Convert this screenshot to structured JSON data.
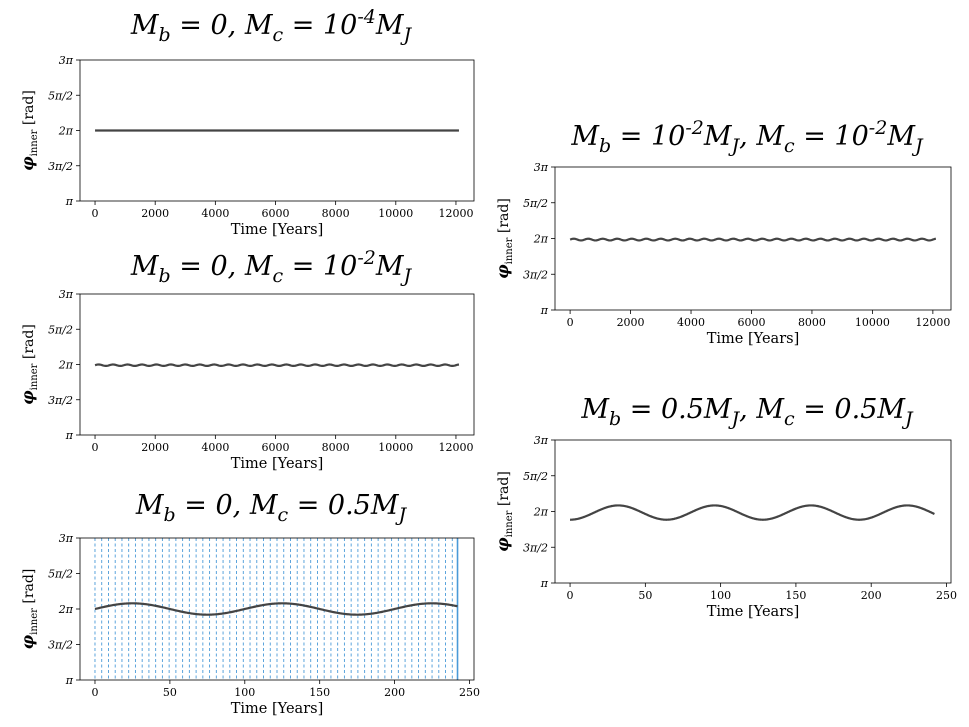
{
  "chart_data": [
    {
      "type": "line",
      "title": "M_b = 0, M_c = 10^{-4}M_J",
      "xlabel": "Time [Years]",
      "ylabel": "φ_inner [rad]",
      "xticks": [
        "0",
        "2000",
        "4000",
        "6000",
        "8000",
        "10000",
        "12000"
      ],
      "yticks": [
        "π",
        "3π/2",
        "2π",
        "5π/2",
        "3π"
      ],
      "xlim": [
        -500,
        12600
      ],
      "ylim": [
        1,
        3
      ],
      "series": [
        {
          "x_start": 0,
          "x_end": 12100,
          "center": 2.0,
          "amplitude": 0.0,
          "period": 0,
          "phase": 0,
          "color": "#444444"
        }
      ],
      "vlines": []
    },
    {
      "type": "line",
      "title": "M_b = 0, M_c = 10^{-2}M_J",
      "xlabel": "Time [Years]",
      "ylabel": "φ_inner [rad]",
      "xticks": [
        "0",
        "2000",
        "4000",
        "6000",
        "8000",
        "10000",
        "12000"
      ],
      "yticks": [
        "π",
        "3π/2",
        "2π",
        "5π/2",
        "3π"
      ],
      "xlim": [
        -500,
        12600
      ],
      "ylim": [
        1,
        3
      ],
      "series": [
        {
          "x_start": 0,
          "x_end": 12100,
          "center": 1.99,
          "amplitude": 0.01,
          "period": 480,
          "phase": 0,
          "color": "#444444"
        }
      ],
      "vlines": []
    },
    {
      "type": "line",
      "title": "M_b = 0, M_c = 0.5M_J",
      "xlabel": "Time [Years]",
      "ylabel": "φ_inner [rad]",
      "xticks": [
        "0",
        "50",
        "100",
        "150",
        "200",
        "250"
      ],
      "yticks": [
        "π",
        "3π/2",
        "2π",
        "5π/2",
        "3π"
      ],
      "xlim": [
        -10,
        253
      ],
      "ylim": [
        1,
        3
      ],
      "series": [
        {
          "x_start": 0,
          "x_end": 242,
          "center": 2.0,
          "amplitude": 0.08,
          "period": 100,
          "phase": 0,
          "color": "#444444"
        }
      ],
      "vlines": {
        "start": 0,
        "end": 242,
        "step": 4.5,
        "color": "#4a9ad8"
      }
    },
    {
      "type": "line",
      "title": "M_b = 10^{-2}M_J, M_c = 10^{-2}M_J",
      "xlabel": "Time [Years]",
      "ylabel": "φ_inner [rad]",
      "xticks": [
        "0",
        "2000",
        "4000",
        "6000",
        "8000",
        "10000",
        "12000"
      ],
      "yticks": [
        "π",
        "3π/2",
        "2π",
        "5π/2",
        "3π"
      ],
      "xlim": [
        -500,
        12600
      ],
      "ylim": [
        1,
        3
      ],
      "series": [
        {
          "x_start": 0,
          "x_end": 12100,
          "center": 1.985,
          "amplitude": 0.012,
          "period": 480,
          "phase": 0,
          "color": "#444444"
        }
      ],
      "vlines": []
    },
    {
      "type": "line",
      "title": "M_b = 0.5M_J, M_c = 0.5M_J",
      "xlabel": "Time [Years]",
      "ylabel": "φ_inner [rad]",
      "xticks": [
        "0",
        "50",
        "100",
        "150",
        "200",
        "250"
      ],
      "yticks": [
        "π",
        "3π/2",
        "2π",
        "5π/2",
        "3π"
      ],
      "xlim": [
        -10,
        253
      ],
      "ylim": [
        1,
        3
      ],
      "series": [
        {
          "x_start": 0,
          "x_end": 242,
          "center": 1.985,
          "amplitude": 0.1,
          "period": 64,
          "phase": -1.5708,
          "color": "#444444"
        }
      ],
      "vlines": []
    }
  ]
}
